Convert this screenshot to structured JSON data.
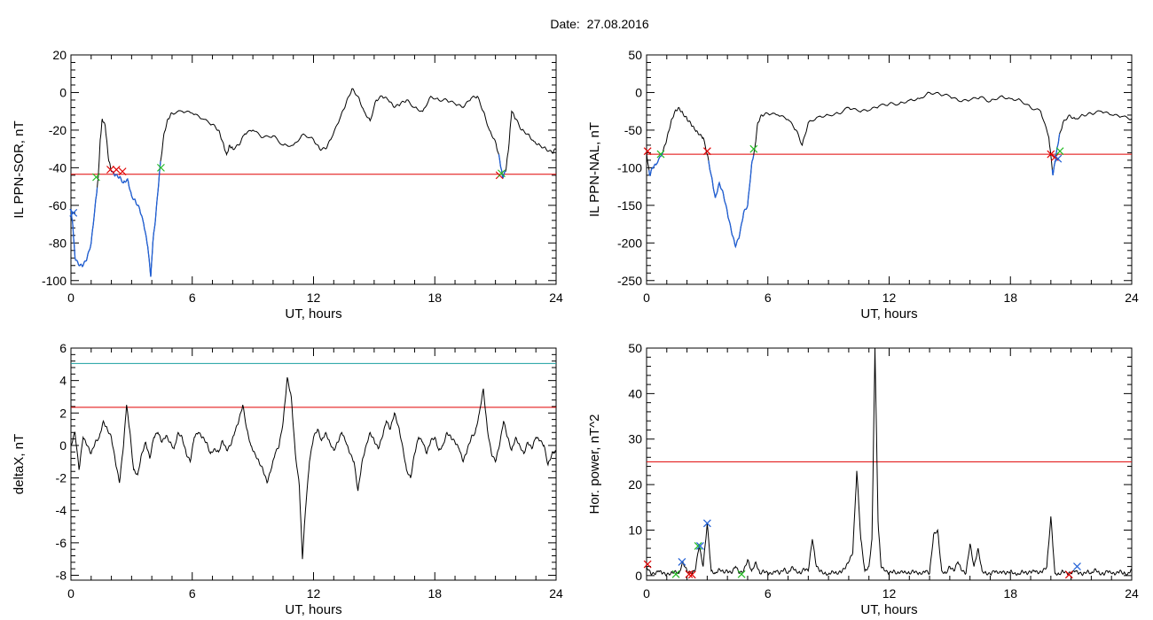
{
  "header": {
    "date_label": "Date:",
    "date_value": "27.08.2016"
  },
  "colors": {
    "trace": "#000000",
    "disturbed_trace": "#1f5fd6",
    "threshold": "#e00000",
    "threshold_upper": "#1a9fa0",
    "marker_red": "#e00000",
    "marker_green": "#22bb22",
    "marker_blue": "#1f5fd6"
  },
  "chart_data": [
    {
      "type": "line",
      "id": "ppn-sor",
      "xlabel": "UT, hours",
      "ylabel": "IL PPN-SOR, nT",
      "xlim": [
        0,
        24
      ],
      "ylim": [
        -102,
        20
      ],
      "xticks": [
        0,
        6,
        12,
        18,
        24
      ],
      "yticks": [
        -100,
        -80,
        -60,
        -40,
        -20,
        0,
        20
      ],
      "threshold": -43.5,
      "series": [
        {
          "x": [
            0,
            0.1,
            0.2,
            0.4,
            0.6,
            0.8,
            1.0,
            1.2,
            1.35,
            1.45,
            1.55,
            1.7,
            1.85,
            2.0,
            2.2,
            2.4,
            2.6,
            2.8,
            3.0,
            3.2,
            3.4,
            3.6,
            3.8,
            3.95,
            4.05,
            4.2,
            4.4,
            4.6,
            4.8,
            5.0,
            5.5,
            6.0,
            6.5,
            7.0,
            7.3,
            7.5,
            7.7,
            7.85,
            8.0,
            8.3,
            8.6,
            9.0,
            9.5,
            10.0,
            10.5,
            11.0,
            11.5,
            12.0,
            12.3,
            12.6,
            12.9,
            13.3,
            13.6,
            13.9,
            14.2,
            14.5,
            14.8,
            15.1,
            15.4,
            15.7,
            16.0,
            16.3,
            16.6,
            17.0,
            17.4,
            17.8,
            18.2,
            18.6,
            19.0,
            19.4,
            19.8,
            20.1,
            20.4,
            20.7,
            21.0,
            21.2,
            21.35,
            21.5,
            21.65,
            21.8,
            22.0,
            22.3,
            22.6,
            22.9,
            23.2,
            23.5,
            23.8,
            24.0
          ],
          "y": [
            -62,
            -72,
            -88,
            -92,
            -92,
            -88,
            -80,
            -60,
            -45,
            -25,
            -14,
            -18,
            -35,
            -42,
            -44,
            -45,
            -48,
            -46,
            -55,
            -58,
            -62,
            -70,
            -82,
            -98,
            -80,
            -65,
            -40,
            -22,
            -14,
            -11,
            -10,
            -11,
            -14,
            -17,
            -20,
            -26,
            -33,
            -28,
            -30,
            -28,
            -22,
            -20,
            -24,
            -23,
            -28,
            -28,
            -22,
            -25,
            -30,
            -30,
            -24,
            -14,
            -6,
            2,
            -2,
            -10,
            -15,
            -4,
            -2,
            -4,
            -8,
            -6,
            -4,
            -8,
            -10,
            -2,
            -4,
            -4,
            -6,
            -8,
            -3,
            -2,
            -10,
            -20,
            -26,
            -35,
            -45,
            -42,
            -30,
            -10,
            -14,
            -20,
            -22,
            -26,
            -28,
            -30,
            -32,
            -30
          ]
        }
      ],
      "disturbed_ranges": [
        [
          0,
          1.3
        ],
        [
          2.0,
          4.45
        ],
        [
          21.15,
          21.5
        ]
      ],
      "markers": [
        {
          "x": 0.12,
          "y": -64,
          "color": "blue"
        },
        {
          "x": 1.25,
          "y": -45,
          "color": "green"
        },
        {
          "x": 1.95,
          "y": -41,
          "color": "red"
        },
        {
          "x": 2.25,
          "y": -41,
          "color": "red"
        },
        {
          "x": 2.55,
          "y": -42,
          "color": "red"
        },
        {
          "x": 4.45,
          "y": -40,
          "color": "green"
        },
        {
          "x": 21.2,
          "y": -44,
          "color": "red"
        },
        {
          "x": 21.3,
          "y": -43,
          "color": "green"
        }
      ]
    },
    {
      "type": "line",
      "id": "ppn-nal",
      "xlabel": "UT, hours",
      "ylabel": "IL PPN-NAL, nT",
      "xlim": [
        0,
        24
      ],
      "ylim": [
        -255,
        50
      ],
      "xticks": [
        0,
        6,
        12,
        18,
        24
      ],
      "yticks": [
        -250,
        -200,
        -150,
        -100,
        -50,
        0,
        50
      ],
      "threshold": -82,
      "series": [
        {
          "x": [
            0,
            0.15,
            0.3,
            0.5,
            0.8,
            1.0,
            1.2,
            1.4,
            1.6,
            1.8,
            2.0,
            2.2,
            2.4,
            2.6,
            2.8,
            3.0,
            3.2,
            3.4,
            3.6,
            3.8,
            4.0,
            4.2,
            4.4,
            4.6,
            4.8,
            5.0,
            5.2,
            5.35,
            5.5,
            5.7,
            6.0,
            6.5,
            7.0,
            7.4,
            7.7,
            8.0,
            8.5,
            9.0,
            9.5,
            10.0,
            10.5,
            11.0,
            11.5,
            12.0,
            12.5,
            13.0,
            13.5,
            14.0,
            14.5,
            15.0,
            15.5,
            16.0,
            16.5,
            17.0,
            17.5,
            18.0,
            18.5,
            19.0,
            19.5,
            19.9,
            20.1,
            20.25,
            20.4,
            20.6,
            20.9,
            21.2,
            21.6,
            22.0,
            22.5,
            23.0,
            23.5,
            24.0
          ],
          "y": [
            -80,
            -110,
            -100,
            -95,
            -80,
            -62,
            -40,
            -25,
            -20,
            -28,
            -35,
            -42,
            -50,
            -56,
            -60,
            -82,
            -110,
            -140,
            -120,
            -135,
            -160,
            -185,
            -205,
            -190,
            -160,
            -150,
            -95,
            -75,
            -40,
            -30,
            -28,
            -30,
            -36,
            -50,
            -70,
            -40,
            -32,
            -30,
            -28,
            -20,
            -25,
            -24,
            -18,
            -15,
            -15,
            -10,
            -8,
            0,
            -2,
            -5,
            -12,
            -10,
            -6,
            -12,
            -5,
            -8,
            -10,
            -20,
            -25,
            -60,
            -110,
            -85,
            -60,
            -40,
            -30,
            -35,
            -30,
            -28,
            -25,
            -30,
            -32,
            -35
          ]
        }
      ],
      "disturbed_ranges": [
        [
          0.1,
          0.8
        ],
        [
          3.05,
          5.3
        ],
        [
          20.05,
          20.45
        ]
      ],
      "markers": [
        {
          "x": 0.05,
          "y": -78,
          "color": "red"
        },
        {
          "x": 0.7,
          "y": -82,
          "color": "green"
        },
        {
          "x": 3.0,
          "y": -78,
          "color": "red"
        },
        {
          "x": 5.3,
          "y": -75,
          "color": "green"
        },
        {
          "x": 20.0,
          "y": -82,
          "color": "red"
        },
        {
          "x": 20.2,
          "y": -86,
          "color": "red"
        },
        {
          "x": 20.35,
          "y": -88,
          "color": "blue"
        },
        {
          "x": 20.45,
          "y": -78,
          "color": "green"
        }
      ]
    },
    {
      "type": "line",
      "id": "deltax",
      "xlabel": "UT, hours",
      "ylabel": "deltaX, nT",
      "xlim": [
        0,
        24
      ],
      "ylim": [
        -8.3,
        6
      ],
      "xticks": [
        0,
        6,
        12,
        18,
        24
      ],
      "yticks": [
        -8,
        -6,
        -4,
        -2,
        0,
        2,
        4,
        6
      ],
      "threshold": 2.35,
      "threshold_upper": 5.05,
      "series": [
        {
          "x": [
            0,
            0.2,
            0.4,
            0.6,
            0.8,
            1.0,
            1.2,
            1.4,
            1.6,
            1.8,
            2.0,
            2.2,
            2.4,
            2.6,
            2.75,
            2.9,
            3.1,
            3.3,
            3.5,
            3.7,
            3.9,
            4.1,
            4.3,
            4.5,
            4.7,
            4.9,
            5.1,
            5.3,
            5.5,
            5.7,
            5.9,
            6.1,
            6.3,
            6.5,
            6.7,
            6.9,
            7.1,
            7.3,
            7.5,
            7.7,
            7.9,
            8.1,
            8.3,
            8.5,
            8.7,
            8.9,
            9.1,
            9.3,
            9.5,
            9.7,
            9.9,
            10.1,
            10.3,
            10.5,
            10.7,
            10.9,
            11.1,
            11.3,
            11.45,
            11.6,
            11.8,
            12.0,
            12.2,
            12.4,
            12.6,
            12.8,
            13.0,
            13.2,
            13.4,
            13.6,
            13.8,
            14.0,
            14.2,
            14.4,
            14.6,
            14.8,
            15.0,
            15.2,
            15.4,
            15.6,
            15.8,
            16.0,
            16.2,
            16.4,
            16.6,
            16.8,
            17.0,
            17.2,
            17.4,
            17.6,
            17.8,
            18.0,
            18.2,
            18.4,
            18.6,
            18.8,
            19.0,
            19.2,
            19.4,
            19.6,
            19.8,
            20.0,
            20.2,
            20.4,
            20.6,
            20.8,
            21.0,
            21.2,
            21.4,
            21.6,
            21.8,
            22.0,
            22.2,
            22.4,
            22.6,
            22.8,
            23.0,
            23.2,
            23.4,
            23.6,
            23.8,
            24.0
          ],
          "y": [
            0,
            0.8,
            -1.5,
            0.5,
            0,
            -0.5,
            0.2,
            0.5,
            1.5,
            1,
            0.5,
            -1,
            -2.3,
            0,
            2.5,
            1,
            -1.5,
            -1.8,
            -0.5,
            0.2,
            -0.8,
            0.5,
            0.8,
            0.2,
            0.6,
            0.2,
            -0.2,
            0.8,
            0.5,
            -0.5,
            -1,
            0.5,
            0.8,
            0.5,
            0.2,
            -0.5,
            -0.2,
            -0.4,
            0.3,
            -0.3,
            0,
            0.8,
            1.5,
            2.5,
            1,
            0,
            -0.5,
            -1,
            -1.5,
            -2.3,
            -1.5,
            -0.5,
            0,
            1.5,
            4.2,
            3,
            -0.5,
            -2.5,
            -7,
            -4,
            -1,
            0.5,
            1,
            0.3,
            0.8,
            0.2,
            -0.3,
            0.2,
            0.8,
            0.2,
            -0.5,
            -1,
            -2.8,
            -1,
            0,
            0.8,
            0.3,
            -0.2,
            0.5,
            1.5,
            1,
            2,
            1.2,
            0,
            -1.5,
            -2,
            -0.5,
            0.5,
            0.2,
            -0.5,
            0.3,
            0.5,
            -0.3,
            0,
            0.8,
            0.5,
            0.2,
            -0.2,
            -1,
            -0.3,
            0.5,
            0.8,
            2,
            3.5,
            1,
            -0.5,
            -1,
            0,
            1.5,
            0.5,
            -0.3,
            0.5,
            0,
            -0.5,
            0.2,
            -0.2,
            0.5,
            0.3,
            0,
            -1.2,
            -0.5,
            -0.3
          ]
        }
      ],
      "disturbed_ranges": [],
      "markers": []
    },
    {
      "type": "line",
      "id": "hor-power",
      "xlabel": "UT, hours",
      "ylabel": "Hor. power, nT^2",
      "xlim": [
        0,
        24
      ],
      "ylim": [
        -1,
        50
      ],
      "xticks": [
        0,
        6,
        12,
        18,
        24
      ],
      "yticks": [
        0,
        10,
        20,
        30,
        40,
        50
      ],
      "threshold": 25,
      "series": [
        {
          "x": [
            0,
            0.2,
            0.4,
            0.6,
            0.8,
            1.0,
            1.2,
            1.4,
            1.6,
            1.8,
            2.0,
            2.2,
            2.4,
            2.6,
            2.8,
            3.0,
            3.2,
            3.4,
            3.6,
            3.8,
            4.0,
            4.2,
            4.4,
            4.6,
            4.8,
            5.0,
            5.2,
            5.4,
            5.6,
            5.8,
            6.0,
            6.2,
            6.4,
            6.6,
            6.8,
            7.0,
            7.2,
            7.4,
            7.6,
            7.8,
            8.0,
            8.2,
            8.4,
            8.6,
            8.8,
            9.0,
            9.2,
            9.4,
            9.6,
            9.8,
            10.0,
            10.2,
            10.4,
            10.6,
            10.8,
            11.0,
            11.15,
            11.3,
            11.45,
            11.6,
            11.8,
            12.0,
            12.2,
            12.4,
            12.6,
            12.8,
            13.0,
            13.2,
            13.4,
            13.6,
            13.8,
            14.0,
            14.2,
            14.4,
            14.6,
            14.8,
            15.0,
            15.2,
            15.4,
            15.6,
            15.8,
            16.0,
            16.2,
            16.4,
            16.6,
            16.8,
            17.0,
            17.2,
            17.4,
            17.6,
            17.8,
            18.0,
            18.2,
            18.4,
            18.6,
            18.8,
            19.0,
            19.2,
            19.4,
            19.6,
            19.8,
            20.0,
            20.2,
            20.4,
            20.6,
            20.8,
            21.0,
            21.2,
            21.4,
            21.6,
            21.8,
            22.0,
            22.2,
            22.4,
            22.6,
            22.8,
            23.0,
            23.2,
            23.4,
            23.6,
            23.8,
            24.0
          ],
          "y": [
            2,
            0.5,
            0.3,
            1,
            0.5,
            0.2,
            0.5,
            1,
            0.5,
            3,
            1,
            0.5,
            1,
            6.5,
            2,
            11.5,
            1,
            0.5,
            1.5,
            0.8,
            1,
            0.5,
            2,
            0.5,
            1,
            3.5,
            1,
            3,
            0.5,
            1,
            0.5,
            0.3,
            1,
            0.5,
            1.5,
            0.5,
            2,
            1,
            0.5,
            1.5,
            1,
            8,
            2,
            1,
            0.5,
            0.3,
            1,
            0.5,
            0.8,
            1.5,
            3,
            5,
            23,
            8,
            1,
            2,
            8,
            50,
            12,
            2,
            1,
            0.5,
            1,
            0.5,
            1,
            0.8,
            0.5,
            1,
            0.5,
            0.3,
            1,
            0.5,
            9,
            10,
            1,
            0.5,
            2,
            1,
            3,
            1,
            0.5,
            7,
            2,
            6,
            1,
            0.5,
            0.3,
            1,
            0.5,
            0.8,
            0.5,
            1,
            0.5,
            0.3,
            1,
            0.5,
            0.8,
            1,
            0.5,
            1,
            2,
            13,
            0.5,
            0.3,
            1,
            0.5,
            0.5,
            1,
            0.5,
            0.3,
            1,
            0.5,
            1.5,
            0.5,
            0.3,
            1,
            0.5,
            0.3,
            1,
            0.5,
            0.3,
            1.5
          ]
        }
      ],
      "disturbed_ranges": [],
      "markers": [
        {
          "x": 0.05,
          "y": 2.5,
          "color": "red"
        },
        {
          "x": 1.45,
          "y": 0.3,
          "color": "green"
        },
        {
          "x": 1.75,
          "y": 3,
          "color": "blue"
        },
        {
          "x": 2.1,
          "y": 0.3,
          "color": "red"
        },
        {
          "x": 2.25,
          "y": 0.2,
          "color": "red"
        },
        {
          "x": 2.55,
          "y": 6.5,
          "color": "green"
        },
        {
          "x": 2.65,
          "y": 6.5,
          "color": "blue"
        },
        {
          "x": 3.0,
          "y": 11.5,
          "color": "blue"
        },
        {
          "x": 4.7,
          "y": 0.3,
          "color": "green"
        },
        {
          "x": 20.9,
          "y": 0.2,
          "color": "red"
        },
        {
          "x": 21.3,
          "y": 2,
          "color": "blue"
        }
      ]
    }
  ]
}
